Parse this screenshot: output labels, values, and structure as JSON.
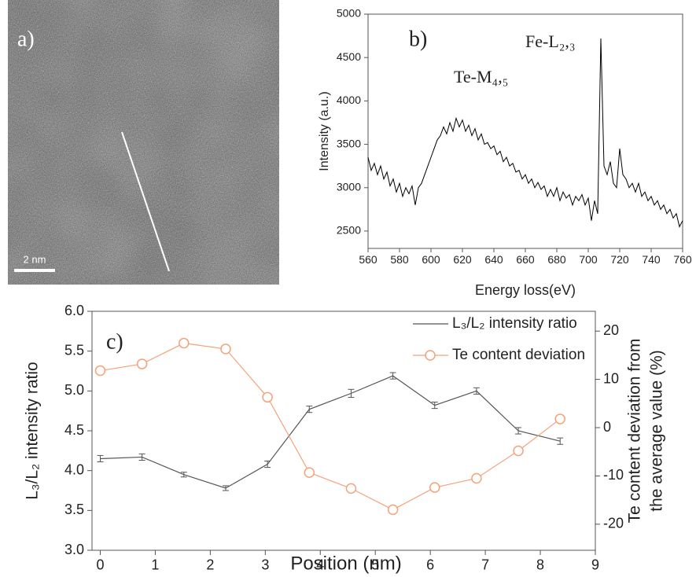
{
  "image_panel": {
    "label": "a)",
    "scale_bar": "2 nm"
  },
  "chart_data": [
    {
      "type": "line",
      "color": "#000000",
      "annotations": [
        "b)",
        "Te-M₄,₅",
        "Fe-L₂,₃"
      ],
      "x_label": "Energy loss(eV)",
      "y_label": "Intensity (a.u.)",
      "xlim": [
        560,
        760
      ],
      "ylim": [
        2300,
        5000
      ],
      "xticks": [
        560,
        580,
        600,
        620,
        640,
        660,
        680,
        700,
        720,
        740,
        760
      ],
      "yticks": [
        2500,
        3000,
        3500,
        4000,
        4500,
        5000
      ],
      "x": [
        560,
        562,
        564,
        566,
        568,
        570,
        572,
        574,
        576,
        578,
        580,
        582,
        584,
        586,
        588,
        590,
        592,
        594,
        596,
        598,
        600,
        602,
        604,
        606,
        608,
        610,
        612,
        614,
        616,
        618,
        620,
        622,
        624,
        626,
        628,
        630,
        632,
        634,
        636,
        638,
        640,
        642,
        644,
        646,
        648,
        650,
        652,
        654,
        656,
        658,
        660,
        662,
        664,
        666,
        668,
        670,
        672,
        674,
        676,
        678,
        680,
        682,
        684,
        686,
        688,
        690,
        692,
        694,
        696,
        698,
        700,
        702,
        704,
        706,
        708,
        710,
        712,
        714,
        716,
        718,
        720,
        722,
        724,
        726,
        728,
        730,
        732,
        734,
        736,
        738,
        740,
        742,
        744,
        746,
        748,
        750,
        752,
        754,
        756,
        758,
        760
      ],
      "values": [
        3350,
        3200,
        3280,
        3150,
        3250,
        3100,
        3180,
        3020,
        3100,
        2950,
        3050,
        2900,
        3000,
        2930,
        3020,
        2800,
        3000,
        3050,
        3150,
        3250,
        3350,
        3450,
        3550,
        3600,
        3700,
        3620,
        3750,
        3650,
        3800,
        3700,
        3780,
        3650,
        3720,
        3600,
        3680,
        3550,
        3620,
        3500,
        3520,
        3450,
        3480,
        3380,
        3420,
        3300,
        3350,
        3250,
        3280,
        3180,
        3200,
        3100,
        3150,
        3050,
        3100,
        3000,
        3060,
        2980,
        3020,
        2900,
        2980,
        2900,
        3000,
        2850,
        2950,
        2880,
        2920,
        2800,
        2900,
        2850,
        2920,
        2800,
        2880,
        2620,
        2850,
        2700,
        4720,
        3250,
        3150,
        3300,
        3050,
        3000,
        3450,
        3150,
        3100,
        3000,
        3050,
        2950,
        3050,
        2900,
        2950,
        2850,
        2900,
        2800,
        2850,
        2750,
        2800,
        2700,
        2750,
        2650,
        2700,
        2550,
        2620
      ]
    },
    {
      "type": "line",
      "annotations": [
        "c)"
      ],
      "x_label": "Position (nm)",
      "y_label": "L₃/L₂ intensity ratio",
      "y2_label": [
        "Te content deviation from",
        "the average value (%)"
      ],
      "legend": "upper right",
      "xlim": [
        -0.15,
        9
      ],
      "ylim": [
        3,
        6
      ],
      "y2lim": [
        -25.4,
        24.1
      ],
      "xticks": [
        0,
        1,
        2,
        3,
        4,
        5,
        6,
        7,
        8,
        9
      ],
      "yticks": [
        {
          "value": 3,
          "label": "3.0"
        },
        3.5,
        {
          "value": 4,
          "label": "4.0"
        },
        4.5,
        {
          "value": 5,
          "label": "5.0"
        },
        5.5,
        {
          "value": 6,
          "label": "6.0"
        }
      ],
      "y2ticks": [
        -20,
        -10,
        0,
        10,
        20
      ],
      "x": [
        0,
        0.76,
        1.52,
        2.28,
        3.04,
        3.8,
        4.56,
        5.32,
        6.08,
        6.84,
        7.6,
        8.36
      ],
      "series": [
        {
          "name": "L₃/L₂ intensity ratio",
          "color": "#555555",
          "marker": "none",
          "values": [
            4.15,
            4.17,
            3.95,
            3.78,
            4.08,
            4.77,
            4.97,
            5.19,
            4.82,
            5.0,
            4.5,
            4.37
          ],
          "errors": [
            0.04,
            0.04,
            0.03,
            0.03,
            0.04,
            0.04,
            0.05,
            0.04,
            0.04,
            0.04,
            0.04,
            0.04
          ]
        },
        {
          "name": "Te content deviation",
          "color": "#f4a27a",
          "marker": "circle",
          "axis": "y2",
          "values": [
            11.8,
            13.2,
            17.5,
            16.3,
            6.3,
            -9.3,
            -12.6,
            -17,
            -12.4,
            -10.5,
            -4.8,
            1.8
          ]
        }
      ]
    }
  ]
}
